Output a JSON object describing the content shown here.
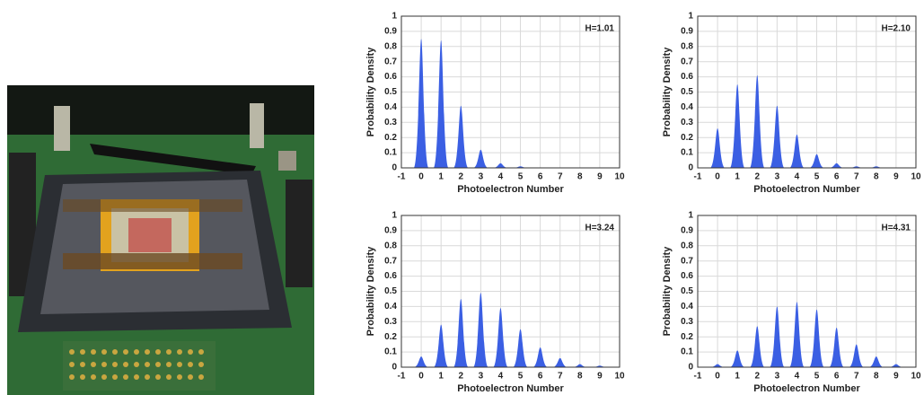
{
  "chart_data": [
    {
      "type": "area",
      "annotation": "H=1.01",
      "xlabel": "Photoelectron Number",
      "ylabel": "Probability Density",
      "x": [
        0,
        1,
        2,
        3,
        4,
        5,
        6,
        7,
        8,
        9
      ],
      "values": [
        0.85,
        0.84,
        0.41,
        0.12,
        0.03,
        0.01,
        0,
        0,
        0,
        0
      ],
      "color": "#3b5fe3",
      "xlim": [
        -1,
        10
      ],
      "xticks": [
        -1,
        0,
        1,
        2,
        3,
        4,
        5,
        6,
        7,
        8,
        9,
        10
      ],
      "ylim": [
        0,
        1
      ],
      "yticks": [
        0,
        0.1,
        0.2,
        0.3,
        0.4,
        0.5,
        0.6,
        0.7,
        0.8,
        0.9,
        1
      ],
      "grid": true
    },
    {
      "type": "area",
      "annotation": "H=2.10",
      "xlabel": "Photoelectron Number",
      "ylabel": "Probability Density",
      "x": [
        0,
        1,
        2,
        3,
        4,
        5,
        6,
        7,
        8,
        9
      ],
      "values": [
        0.26,
        0.55,
        0.61,
        0.41,
        0.22,
        0.09,
        0.03,
        0.01,
        0.01,
        0
      ],
      "color": "#3b5fe3",
      "xlim": [
        -1,
        10
      ],
      "xticks": [
        -1,
        0,
        1,
        2,
        3,
        4,
        5,
        6,
        7,
        8,
        9,
        10
      ],
      "ylim": [
        0,
        1
      ],
      "yticks": [
        0,
        0.1,
        0.2,
        0.3,
        0.4,
        0.5,
        0.6,
        0.7,
        0.8,
        0.9,
        1
      ],
      "grid": true
    },
    {
      "type": "area",
      "annotation": "H=3.24",
      "xlabel": "Photoelectron Number",
      "ylabel": "Probability Density",
      "x": [
        0,
        1,
        2,
        3,
        4,
        5,
        6,
        7,
        8,
        9
      ],
      "values": [
        0.07,
        0.28,
        0.45,
        0.49,
        0.39,
        0.25,
        0.13,
        0.06,
        0.02,
        0.01
      ],
      "color": "#3b5fe3",
      "xlim": [
        -1,
        10
      ],
      "xticks": [
        -1,
        0,
        1,
        2,
        3,
        4,
        5,
        6,
        7,
        8,
        9,
        10
      ],
      "ylim": [
        0,
        1
      ],
      "yticks": [
        0,
        0.1,
        0.2,
        0.3,
        0.4,
        0.5,
        0.6,
        0.7,
        0.8,
        0.9,
        1
      ],
      "grid": true
    },
    {
      "type": "area",
      "annotation": "H=4.31",
      "xlabel": "Photoelectron Number",
      "ylabel": "Probability Density",
      "x": [
        0,
        1,
        2,
        3,
        4,
        5,
        6,
        7,
        8,
        9
      ],
      "values": [
        0.02,
        0.11,
        0.27,
        0.4,
        0.43,
        0.38,
        0.26,
        0.15,
        0.07,
        0.02
      ],
      "color": "#3b5fe3",
      "xlim": [
        -1,
        10
      ],
      "xticks": [
        -1,
        0,
        1,
        2,
        3,
        4,
        5,
        6,
        7,
        8,
        9,
        10
      ],
      "ylim": [
        0,
        1
      ],
      "yticks": [
        0,
        0.1,
        0.2,
        0.3,
        0.4,
        0.5,
        0.6,
        0.7,
        0.8,
        0.9,
        1
      ],
      "grid": true
    }
  ]
}
